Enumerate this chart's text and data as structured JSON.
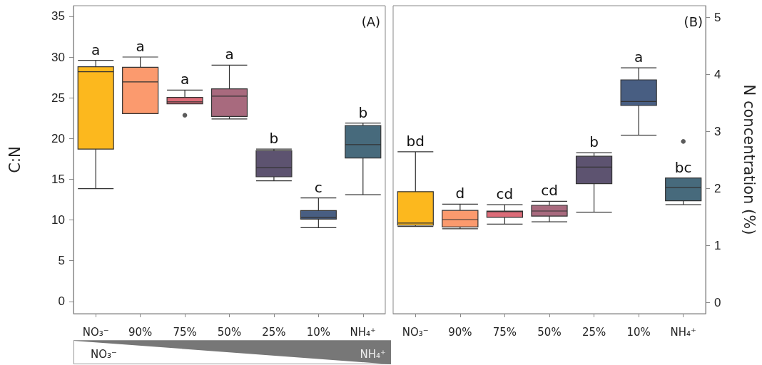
{
  "chart_data": [
    {
      "type": "box",
      "title": "(A)",
      "ylabel": "C:N",
      "categories": [
        "NO₃⁻",
        "90%",
        "75%",
        "50%",
        "25%",
        "10%",
        "NH₄⁺"
      ],
      "colors": [
        "#fcb81e",
        "#fb9a6e",
        "#dc6b78",
        "#a86a7e",
        "#5d5370",
        "#485e82",
        "#476a7c"
      ],
      "boxes": [
        {
          "low": 13.85,
          "q1": 18.7,
          "median": 28.2,
          "q3": 28.8,
          "high": 29.6
        },
        {
          "low": 23.05,
          "q1": 23.05,
          "median": 26.95,
          "q3": 28.75,
          "high": 30.0
        },
        {
          "low": 24.25,
          "q1": 24.25,
          "median": 24.5,
          "q3": 25.05,
          "high": 25.95,
          "outliers": [
            22.85
          ]
        },
        {
          "low": 22.4,
          "q1": 22.7,
          "median": 25.2,
          "q3": 26.1,
          "high": 29.0
        },
        {
          "low": 14.8,
          "q1": 15.3,
          "median": 16.4,
          "q3": 18.5,
          "high": 18.7
        },
        {
          "low": 9.05,
          "q1": 10.1,
          "median": 10.3,
          "q3": 11.15,
          "high": 12.7
        },
        {
          "low": 13.1,
          "q1": 17.6,
          "median": 19.25,
          "q3": 21.6,
          "high": 21.9
        }
      ],
      "ylim": [
        -1.5,
        36.3
      ],
      "yticks": [
        0,
        5,
        10,
        15,
        20,
        25,
        30,
        35
      ],
      "grid": false,
      "annotations": [
        {
          "text": "a",
          "x": "NO₃⁻",
          "y": 29.6
        },
        {
          "text": "a",
          "x": "90%",
          "y": 30.0
        },
        {
          "text": "a",
          "x": "75%",
          "y": 25.95
        },
        {
          "text": "a",
          "x": "50%",
          "y": 29.0
        },
        {
          "text": "b",
          "x": "25%",
          "y": 18.7
        },
        {
          "text": "c",
          "x": "10%",
          "y": 12.7
        },
        {
          "text": "b",
          "x": "NH₄⁺",
          "y": 21.9
        },
        "NO₃⁻",
        "NH₄⁺"
      ]
    },
    {
      "type": "box",
      "title": "(B)",
      "ylabel": "N concentration (%)",
      "categories": [
        "NO₃⁻",
        "90%",
        "75%",
        "50%",
        "25%",
        "10%",
        "NH₄⁺"
      ],
      "colors": [
        "#fcb81e",
        "#fb9a6e",
        "#dc6b78",
        "#a86a7e",
        "#5d5370",
        "#485e82",
        "#476a7c"
      ],
      "boxes": [
        {
          "low": 1.33,
          "q1": 1.35,
          "median": 1.39,
          "q3": 1.94,
          "high": 2.64
        },
        {
          "low": 1.29,
          "q1": 1.32,
          "median": 1.45,
          "q3": 1.61,
          "high": 1.72
        },
        {
          "low": 1.37,
          "q1": 1.49,
          "median": 1.59,
          "q3": 1.6,
          "high": 1.71
        },
        {
          "low": 1.41,
          "q1": 1.51,
          "median": 1.6,
          "q3": 1.7,
          "high": 1.77
        },
        {
          "low": 1.58,
          "q1": 2.08,
          "median": 2.37,
          "q3": 2.56,
          "high": 2.62
        },
        {
          "low": 2.93,
          "q1": 3.45,
          "median": 3.52,
          "q3": 3.9,
          "high": 4.11
        },
        {
          "low": 1.71,
          "q1": 1.78,
          "median": 2.01,
          "q3": 2.18,
          "high": 2.18,
          "outliers": [
            2.82
          ]
        }
      ],
      "ylim": [
        -0.2,
        5.2
      ],
      "yticks": [
        0,
        1,
        2,
        3,
        4,
        5
      ],
      "grid": false,
      "annotations": [
        {
          "text": "bd",
          "x": "NO₃⁻",
          "y": 2.64
        },
        {
          "text": "d",
          "x": "90%",
          "y": 1.72
        },
        {
          "text": "cd",
          "x": "75%",
          "y": 1.71
        },
        {
          "text": "cd",
          "x": "50%",
          "y": 1.77
        },
        {
          "text": "b",
          "x": "25%",
          "y": 2.62
        },
        {
          "text": "a",
          "x": "10%",
          "y": 4.11
        },
        {
          "text": "bc",
          "x": "NH₄⁺",
          "y": 2.18
        }
      ]
    }
  ]
}
